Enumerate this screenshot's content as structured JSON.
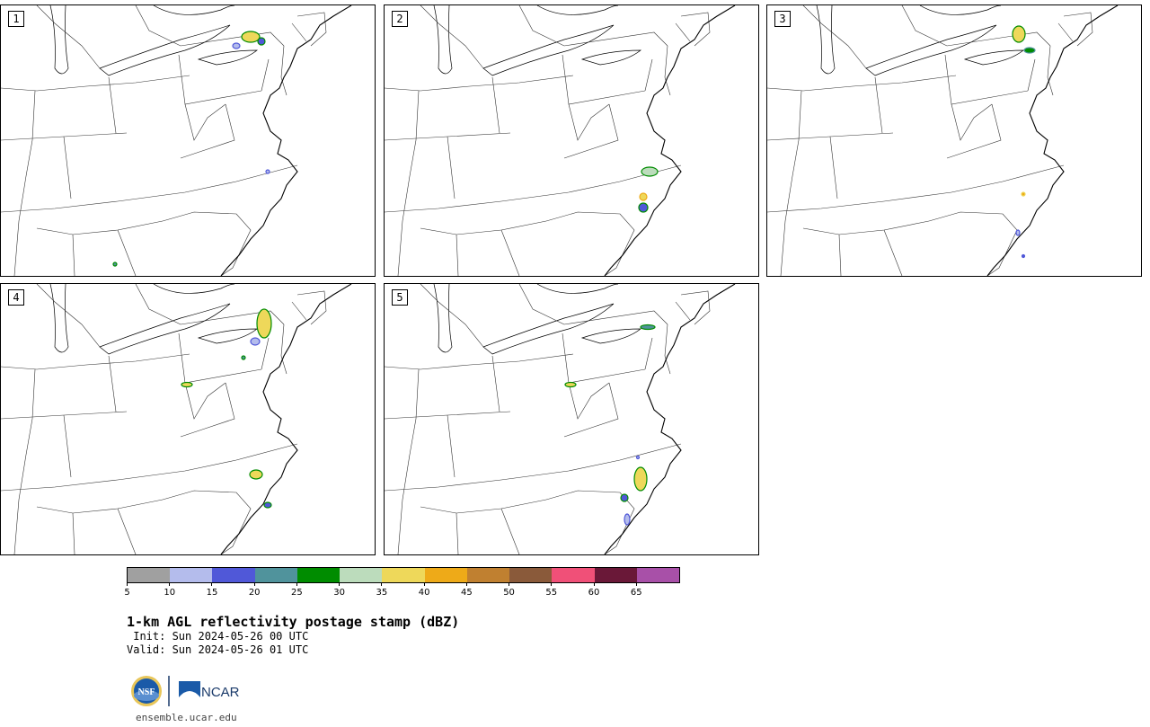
{
  "panels": [
    {
      "label": "1"
    },
    {
      "label": "2"
    },
    {
      "label": "3"
    },
    {
      "label": "4"
    },
    {
      "label": "5"
    }
  ],
  "colorbar": {
    "ticks": [
      "5",
      "10",
      "15",
      "20",
      "25",
      "30",
      "35",
      "40",
      "45",
      "50",
      "55",
      "60",
      "65"
    ],
    "colors": [
      "#a0a0a0",
      "#b4bcec",
      "#5058d8",
      "#50939c",
      "#008c00",
      "#bcdcbc",
      "#eed85a",
      "#eeaa18",
      "#c08030",
      "#8a5a3a",
      "#f05078",
      "#6a1838",
      "#a850a8"
    ]
  },
  "title": "1-km AGL reflectivity postage stamp (dBZ)",
  "init_line": " Init: Sun 2024-05-26 00 UTC",
  "valid_line": "Valid: Sun 2024-05-26 01 UTC",
  "logos": {
    "nsf": "NSF",
    "ncar": "NCAR"
  },
  "footer": "ensemble.ucar.edu"
}
